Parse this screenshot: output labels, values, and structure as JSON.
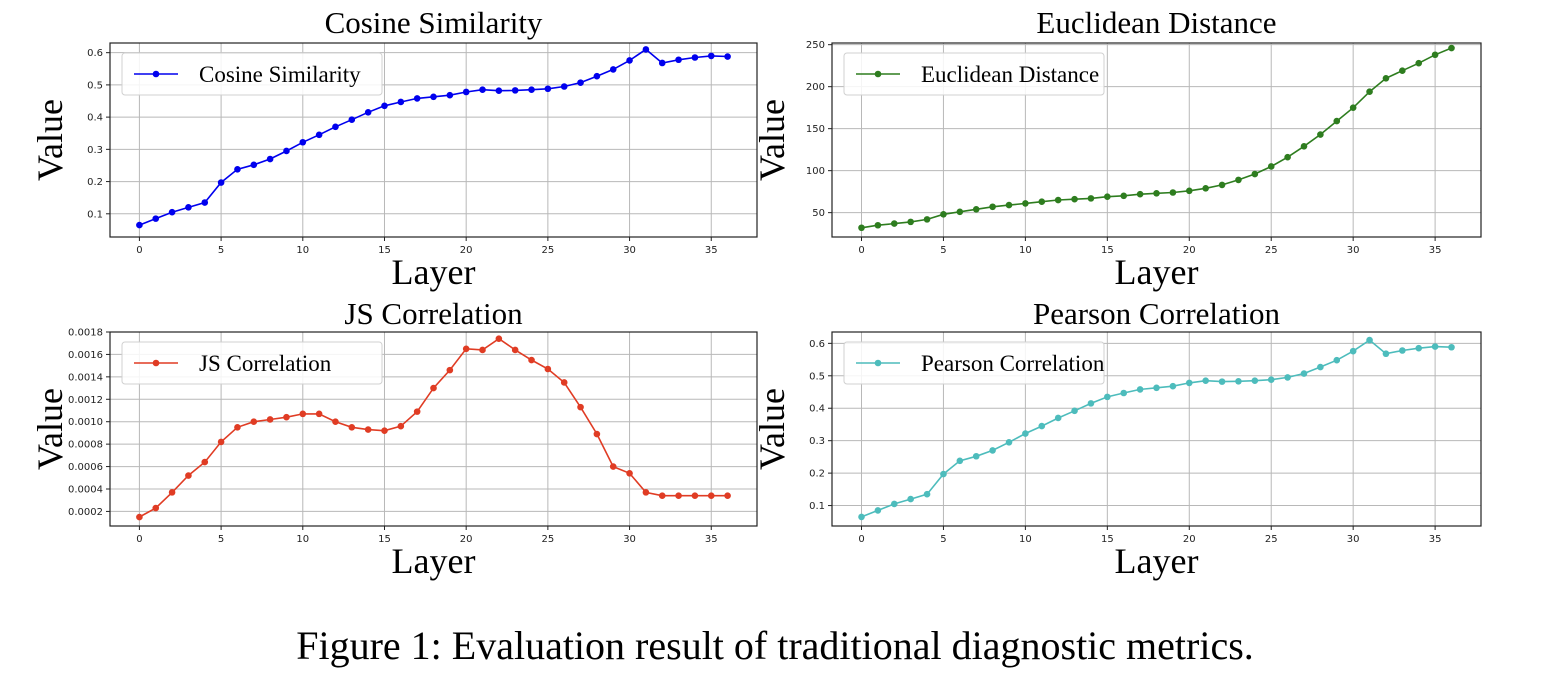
{
  "figure_caption": "Figure 1: Evaluation result of traditional diagnostic metrics.",
  "chart_data": [
    {
      "type": "line",
      "title": "Cosine Similarity",
      "xlabel": "Layer",
      "ylabel": "Value",
      "color": "#0000ee",
      "legend": "Cosine Similarity",
      "legend_position": "top-left",
      "grid": true,
      "xlim": [
        -1.8,
        37.8
      ],
      "ylim": [
        0.028,
        0.63
      ],
      "xticks": [
        0,
        5,
        10,
        15,
        20,
        25,
        30,
        35
      ],
      "xtick_labels": [
        "0",
        "5",
        "10",
        "15",
        "20",
        "25",
        "30",
        "35"
      ],
      "yticks": [
        0.1,
        0.2,
        0.3,
        0.4,
        0.5,
        0.6
      ],
      "ytick_labels": [
        "0.1",
        "0.2",
        "0.3",
        "0.4",
        "0.5",
        "0.6"
      ],
      "x": [
        0,
        1,
        2,
        3,
        4,
        5,
        6,
        7,
        8,
        9,
        10,
        11,
        12,
        13,
        14,
        15,
        16,
        17,
        18,
        19,
        20,
        21,
        22,
        23,
        24,
        25,
        26,
        27,
        28,
        29,
        30,
        31,
        32,
        33,
        34,
        35,
        36
      ],
      "values": [
        0.065,
        0.085,
        0.105,
        0.12,
        0.135,
        0.197,
        0.238,
        0.252,
        0.27,
        0.295,
        0.322,
        0.345,
        0.37,
        0.392,
        0.415,
        0.435,
        0.447,
        0.458,
        0.463,
        0.468,
        0.478,
        0.485,
        0.482,
        0.483,
        0.485,
        0.488,
        0.495,
        0.507,
        0.527,
        0.548,
        0.576,
        0.61,
        0.568,
        0.578,
        0.585,
        0.59,
        0.588
      ]
    },
    {
      "type": "line",
      "title": "Euclidean Distance",
      "xlabel": "Layer",
      "ylabel": "Value",
      "color": "#2e7d1f",
      "legend": "Euclidean Distance",
      "legend_position": "top-left",
      "grid": true,
      "xlim": [
        -1.8,
        37.8
      ],
      "ylim": [
        21,
        252
      ],
      "xticks": [
        0,
        5,
        10,
        15,
        20,
        25,
        30,
        35
      ],
      "xtick_labels": [
        "0",
        "5",
        "10",
        "15",
        "20",
        "25",
        "30",
        "35"
      ],
      "yticks": [
        50,
        100,
        150,
        200,
        250
      ],
      "ytick_labels": [
        "50",
        "100",
        "150",
        "200",
        "250"
      ],
      "x": [
        0,
        1,
        2,
        3,
        4,
        5,
        6,
        7,
        8,
        9,
        10,
        11,
        12,
        13,
        14,
        15,
        16,
        17,
        18,
        19,
        20,
        21,
        22,
        23,
        24,
        25,
        26,
        27,
        28,
        29,
        30,
        31,
        32,
        33,
        34,
        35,
        36
      ],
      "values": [
        32,
        35,
        37,
        39,
        42,
        48,
        51,
        54,
        57,
        59,
        61,
        63,
        65,
        66,
        67,
        69,
        70,
        72,
        73,
        74,
        76,
        79,
        83,
        89,
        96,
        105,
        116,
        129,
        143,
        159,
        175,
        194,
        210,
        219,
        228,
        238,
        246
      ]
    },
    {
      "type": "line",
      "title": "JS Correlation",
      "xlabel": "Layer",
      "ylabel": "Value",
      "color": "#e03c24",
      "legend": "JS Correlation",
      "legend_position": "top-left",
      "grid": true,
      "xlim": [
        -1.8,
        37.8
      ],
      "ylim": [
        7e-05,
        0.0018
      ],
      "xticks": [
        0,
        5,
        10,
        15,
        20,
        25,
        30,
        35
      ],
      "xtick_labels": [
        "0",
        "5",
        "10",
        "15",
        "20",
        "25",
        "30",
        "35"
      ],
      "yticks": [
        0.0002,
        0.0004,
        0.0006,
        0.0008,
        0.001,
        0.0012,
        0.0014,
        0.0016,
        0.0018
      ],
      "ytick_labels": [
        "0.0002",
        "0.0004",
        "0.0006",
        "0.0008",
        "0.0010",
        "0.0012",
        "0.0014",
        "0.0016",
        "0.0018"
      ],
      "x": [
        0,
        1,
        2,
        3,
        4,
        5,
        6,
        7,
        8,
        9,
        10,
        11,
        12,
        13,
        14,
        15,
        16,
        17,
        18,
        19,
        20,
        21,
        22,
        23,
        24,
        25,
        26,
        27,
        28,
        29,
        30,
        31,
        32,
        33,
        34,
        35,
        36
      ],
      "values": [
        0.00015,
        0.00023,
        0.00037,
        0.00052,
        0.00064,
        0.00082,
        0.00095,
        0.001,
        0.00102,
        0.00104,
        0.00107,
        0.00107,
        0.001,
        0.00095,
        0.00093,
        0.00092,
        0.00096,
        0.00109,
        0.0013,
        0.00146,
        0.00165,
        0.00164,
        0.00174,
        0.00164,
        0.00155,
        0.00147,
        0.00135,
        0.00113,
        0.00089,
        0.0006,
        0.00054,
        0.00037,
        0.00034,
        0.00034,
        0.00034,
        0.00034,
        0.00034
      ]
    },
    {
      "type": "line",
      "title": "Pearson Correlation",
      "xlabel": "Layer",
      "ylabel": "Value",
      "color": "#4dbcbc",
      "legend": "Pearson Correlation",
      "legend_position": "top-left",
      "grid": true,
      "xlim": [
        -1.8,
        37.8
      ],
      "ylim": [
        0.037,
        0.635
      ],
      "xticks": [
        0,
        5,
        10,
        15,
        20,
        25,
        30,
        35
      ],
      "xtick_labels": [
        "0",
        "5",
        "10",
        "15",
        "20",
        "25",
        "30",
        "35"
      ],
      "yticks": [
        0.1,
        0.2,
        0.3,
        0.4,
        0.5,
        0.6
      ],
      "ytick_labels": [
        "0.1",
        "0.2",
        "0.3",
        "0.4",
        "0.5",
        "0.6"
      ],
      "x": [
        0,
        1,
        2,
        3,
        4,
        5,
        6,
        7,
        8,
        9,
        10,
        11,
        12,
        13,
        14,
        15,
        16,
        17,
        18,
        19,
        20,
        21,
        22,
        23,
        24,
        25,
        26,
        27,
        28,
        29,
        30,
        31,
        32,
        33,
        34,
        35,
        36
      ],
      "values": [
        0.065,
        0.085,
        0.105,
        0.12,
        0.135,
        0.197,
        0.238,
        0.252,
        0.27,
        0.295,
        0.322,
        0.345,
        0.37,
        0.392,
        0.415,
        0.435,
        0.447,
        0.458,
        0.463,
        0.468,
        0.478,
        0.485,
        0.482,
        0.483,
        0.485,
        0.488,
        0.495,
        0.507,
        0.527,
        0.548,
        0.576,
        0.61,
        0.568,
        0.578,
        0.585,
        0.59,
        0.588
      ]
    }
  ]
}
